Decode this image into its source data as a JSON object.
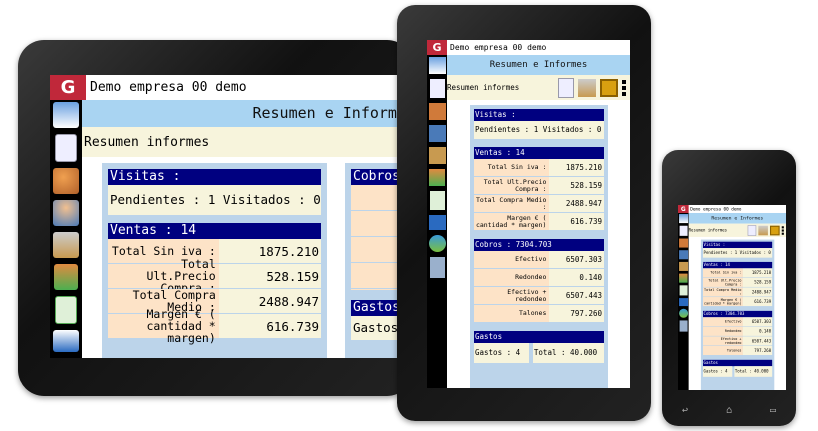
{
  "app": {
    "company": "Demo empresa 00 demo",
    "header": "Resumen e Informes",
    "header_cut": "Resumen e Informe",
    "subtitle": "Resumen informes"
  },
  "visitas": {
    "title": "Visitas :",
    "line": "Pendientes : 1 Visitados : 0"
  },
  "ventas": {
    "title": "Ventas : 14",
    "rows": [
      {
        "label": "Total Sin iva :",
        "value": "1875.210"
      },
      {
        "label": "Total Ult.Precio Compra :",
        "value": "528.159"
      },
      {
        "label": "Total Compra Medio :",
        "value": "2488.947"
      },
      {
        "label": "Margen € ( cantidad * margen)",
        "value": "616.739"
      }
    ]
  },
  "cobros": {
    "title": "Cobros : 7304.703",
    "title_cut": "Cobros",
    "rows": [
      {
        "label": "Efectivo",
        "value": "6507.303"
      },
      {
        "label": "Redondeo",
        "value": "0.140"
      },
      {
        "label": "Efectivo + redondeo",
        "value": "6507.443"
      },
      {
        "label": "Talones",
        "value": "797.260"
      }
    ]
  },
  "gastos": {
    "title": "Gastos",
    "count": "Gastos : 4",
    "count_cut": "Gastos",
    "total": "Total : 40.000"
  },
  "icons": [
    "home-icon",
    "document-icon",
    "user-clock-icon",
    "users-icon",
    "tools-box-icon",
    "hand-icon",
    "list-icon",
    "inbox-icon",
    "sync-icon",
    "building-icon"
  ],
  "colors": {
    "bar": "#000080",
    "header": "#a9d4f2",
    "label_bg": "#fde3c7",
    "value_bg": "#f7f4dc",
    "panel": "#bcd4ea",
    "logo": "#c0283a"
  }
}
